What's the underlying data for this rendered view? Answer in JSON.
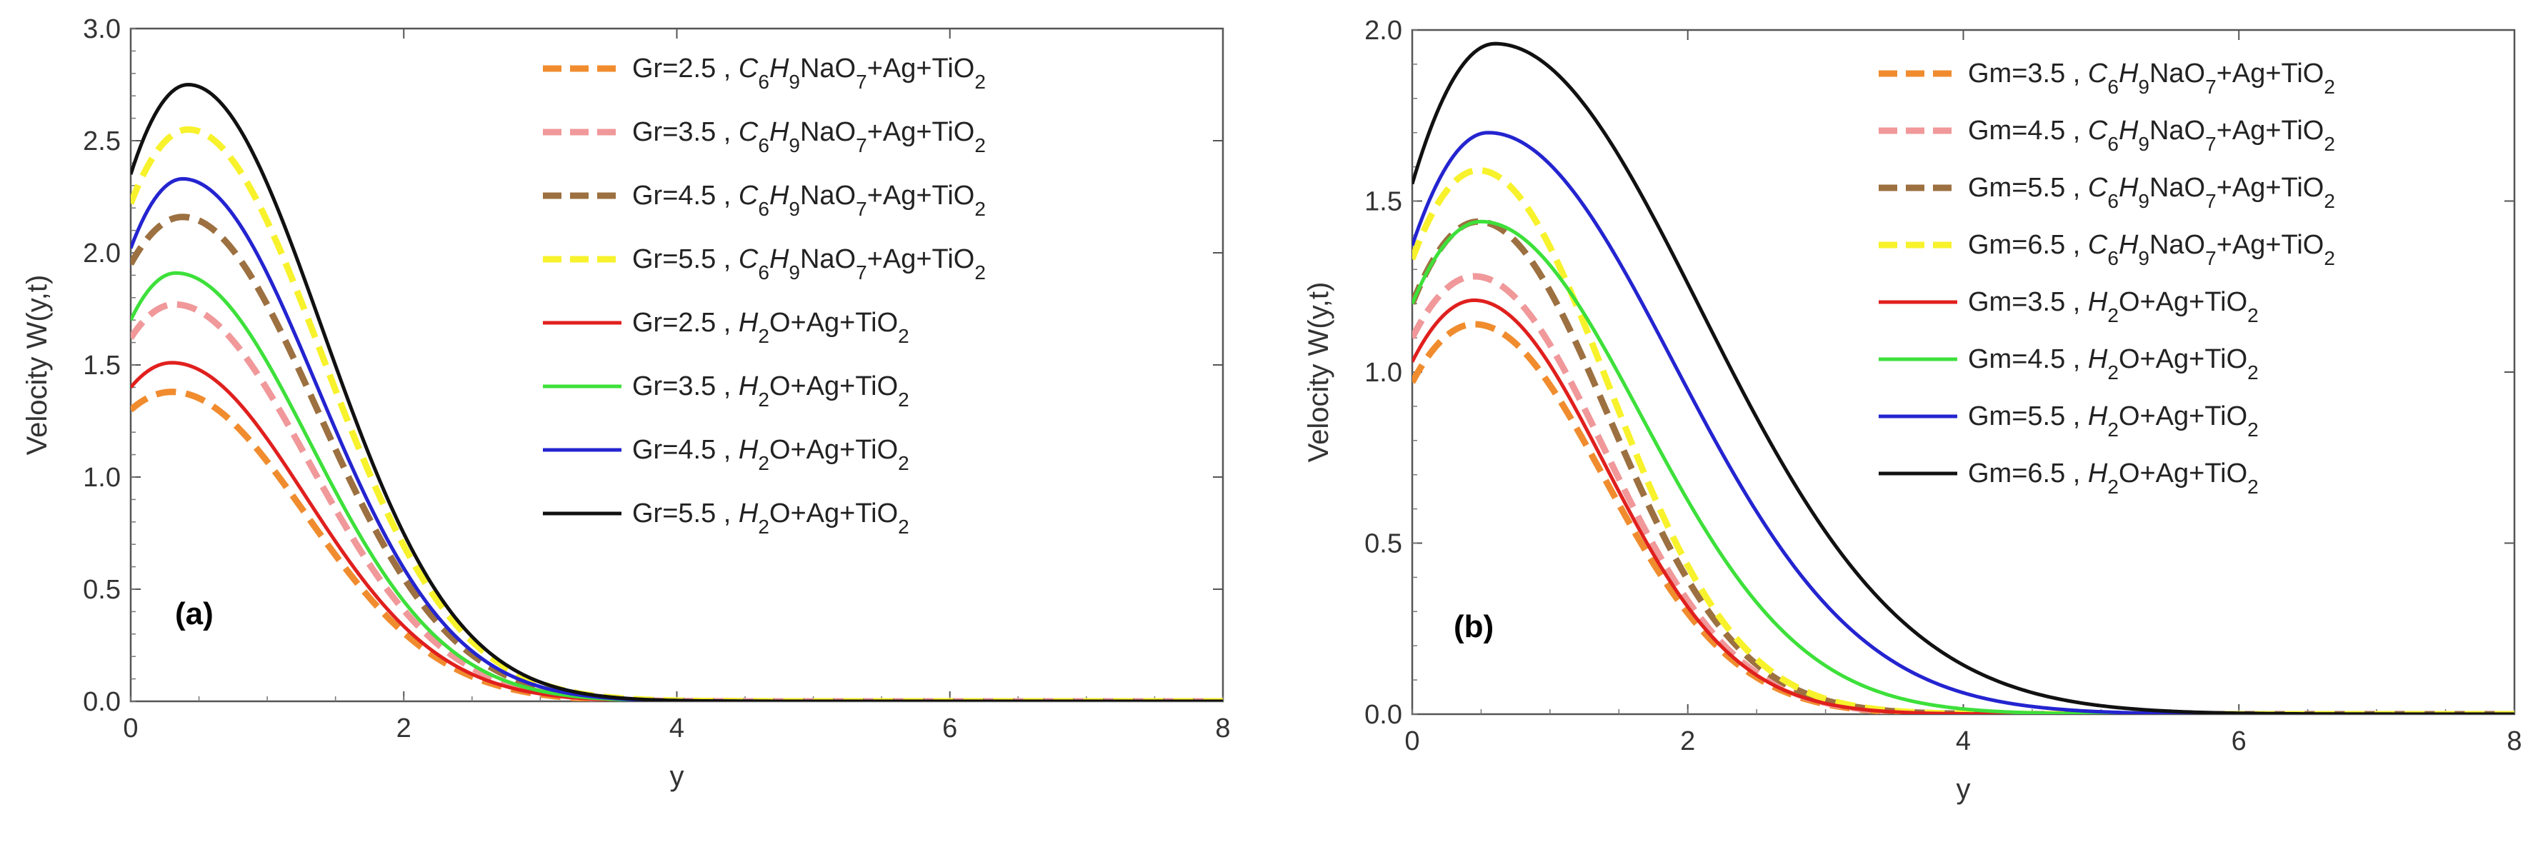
{
  "chart_data": [
    {
      "type": "line",
      "panel_label": "(a)",
      "xlabel": "y",
      "ylabel": "Velocity W(y,t)",
      "xlim": [
        0,
        8
      ],
      "ylim": [
        0,
        3.0
      ],
      "xticks": [
        "0",
        "2",
        "4",
        "6",
        "8"
      ],
      "yticks": [
        "0.0",
        "0.5",
        "1.0",
        "1.5",
        "2.0",
        "2.5",
        "3.0"
      ],
      "legend_position": "top-right",
      "series": [
        {
          "name": "Gr=2.5",
          "fluid": "C6H9NaO7+Ag+TiO2",
          "color": "#f08c2e",
          "style": "dashed",
          "y0": 1.3,
          "peak": 1.38,
          "peak_at": 0.3,
          "decay": 1.35
        },
        {
          "name": "Gr=3.5",
          "fluid": "C6H9NaO7+Ag+TiO2",
          "color": "#f0989a",
          "style": "dashed",
          "y0": 1.62,
          "peak": 1.77,
          "peak_at": 0.32,
          "decay": 1.35
        },
        {
          "name": "Gr=4.5",
          "fluid": "C6H9NaO7+Ag+TiO2",
          "color": "#9c7040",
          "style": "dashed",
          "y0": 1.95,
          "peak": 2.16,
          "peak_at": 0.38,
          "decay": 1.35
        },
        {
          "name": "Gr=5.5",
          "fluid": "C6H9NaO7+Ag+TiO2",
          "color": "#f7f22c",
          "style": "dashed",
          "y0": 2.22,
          "peak": 2.55,
          "peak_at": 0.42,
          "decay": 1.35
        },
        {
          "name": "Gr=2.5",
          "fluid": "H2O+Ag+TiO2",
          "color": "#e0201e",
          "style": "solid",
          "y0": 1.4,
          "peak": 1.51,
          "peak_at": 0.3,
          "decay": 1.35
        },
        {
          "name": "Gr=3.5",
          "fluid": "H2O+Ag+TiO2",
          "color": "#3de03a",
          "style": "solid",
          "y0": 1.7,
          "peak": 1.91,
          "peak_at": 0.33,
          "decay": 1.35
        },
        {
          "name": "Gr=4.5",
          "fluid": "H2O+Ag+TiO2",
          "color": "#2424d0",
          "style": "solid",
          "y0": 2.02,
          "peak": 2.33,
          "peak_at": 0.38,
          "decay": 1.35
        },
        {
          "name": "Gr=5.5",
          "fluid": "H2O+Ag+TiO2",
          "color": "#111111",
          "style": "solid",
          "y0": 2.35,
          "peak": 2.75,
          "peak_at": 0.42,
          "decay": 1.35
        }
      ]
    },
    {
      "type": "line",
      "panel_label": "(b)",
      "xlabel": "y",
      "ylabel": "Velocity W(y,t)",
      "xlim": [
        0,
        8
      ],
      "ylim": [
        0,
        2.0
      ],
      "xticks": [
        "0",
        "2",
        "4",
        "6",
        "8"
      ],
      "yticks": [
        "0.0",
        "0.5",
        "1.0",
        "1.5",
        "2.0"
      ],
      "legend_position": "top-right",
      "series": [
        {
          "name": "Gm=3.5",
          "fluid": "C6H9NaO7+Ag+TiO2",
          "color": "#f08c2e",
          "style": "dashed",
          "y0": 0.97,
          "peak": 1.14,
          "peak_at": 0.45,
          "decay": 1.3
        },
        {
          "name": "Gm=4.5",
          "fluid": "C6H9NaO7+Ag+TiO2",
          "color": "#f0989a",
          "style": "dashed",
          "y0": 1.1,
          "peak": 1.28,
          "peak_at": 0.45,
          "decay": 1.3
        },
        {
          "name": "Gm=5.5",
          "fluid": "C6H9NaO7+Ag+TiO2",
          "color": "#9c7040",
          "style": "dashed",
          "y0": 1.2,
          "peak": 1.44,
          "peak_at": 0.48,
          "decay": 1.3
        },
        {
          "name": "Gm=6.5",
          "fluid": "C6H9NaO7+Ag+TiO2",
          "color": "#f7f22c",
          "style": "dashed",
          "y0": 1.33,
          "peak": 1.59,
          "peak_at": 0.48,
          "decay": 1.3
        },
        {
          "name": "Gm=3.5",
          "fluid": "H2O+Ag+TiO2",
          "color": "#e0201e",
          "style": "solid",
          "y0": 1.03,
          "peak": 1.21,
          "peak_at": 0.45,
          "decay": 1.3
        },
        {
          "name": "Gm=4.5",
          "fluid": "H2O+Ag+TiO2",
          "color": "#3de03a",
          "style": "solid",
          "y0": 1.2,
          "peak": 1.44,
          "peak_at": 0.5,
          "decay": 1.6
        },
        {
          "name": "Gm=5.5",
          "fluid": "H2O+Ag+TiO2",
          "color": "#2424d0",
          "style": "solid",
          "y0": 1.37,
          "peak": 1.7,
          "peak_at": 0.55,
          "decay": 1.85
        },
        {
          "name": "Gm=6.5",
          "fluid": "H2O+Ag+TiO2",
          "color": "#111111",
          "style": "solid",
          "y0": 1.55,
          "peak": 1.96,
          "peak_at": 0.6,
          "decay": 2.05
        }
      ]
    }
  ]
}
